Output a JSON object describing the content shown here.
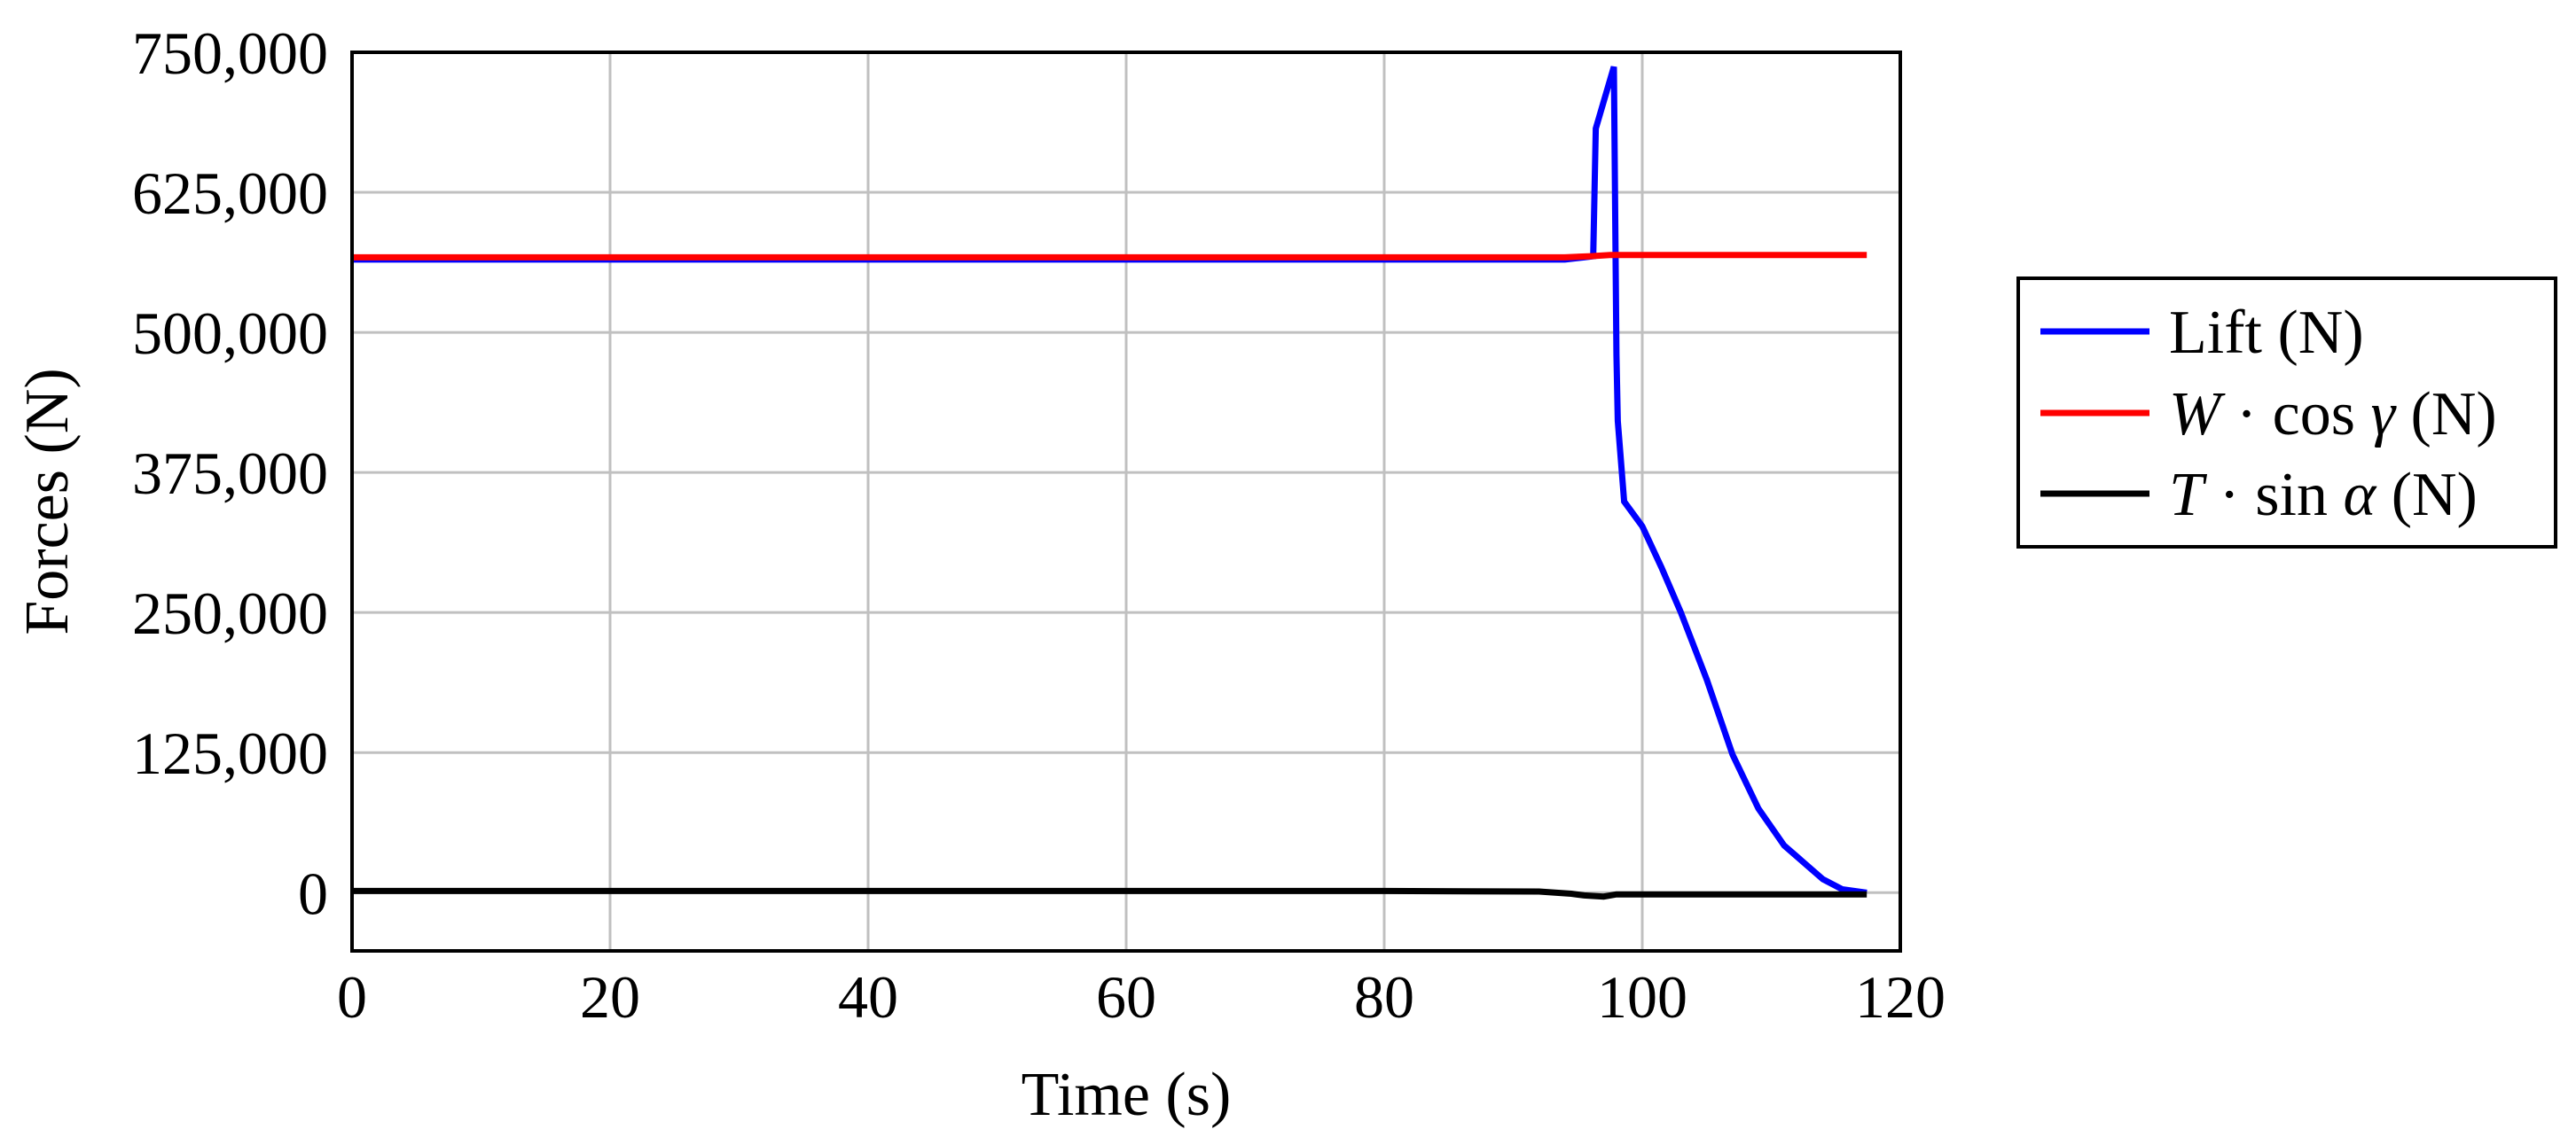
{
  "chart_data": {
    "type": "line",
    "title": "",
    "xlabel": "Time (s)",
    "ylabel": "Forces (N)",
    "xlim": [
      0,
      120
    ],
    "ylim": [
      -52000,
      750000
    ],
    "grid": true,
    "legend_position": "outside-right",
    "x_ticks": [
      0,
      20,
      40,
      60,
      80,
      100,
      120
    ],
    "x_tick_labels": [
      "0",
      "20",
      "40",
      "60",
      "80",
      "100",
      "120"
    ],
    "y_ticks": [
      0,
      125000,
      250000,
      375000,
      500000,
      625000,
      750000
    ],
    "y_tick_labels": [
      "0",
      "125,000",
      "250,000",
      "375,000",
      "500,000",
      "625,000",
      "750,000"
    ],
    "series": [
      {
        "name": "Lift (N)",
        "color": "#0000ff",
        "x": [
          0,
          20,
          40,
          60,
          80,
          94,
          95.5,
          96.2,
          96.4,
          97.8,
          98.0,
          98.1,
          98.6,
          100,
          101.5,
          103,
          105,
          107,
          109,
          111,
          112.5,
          114,
          115.5,
          117.4
        ],
        "y": [
          565000,
          565000,
          565000,
          565000,
          565000,
          565000,
          567000,
          568000,
          682000,
          737000,
          480000,
          421000,
          349000,
          327000,
          290000,
          250000,
          190000,
          123000,
          75000,
          42000,
          27000,
          12000,
          3000,
          0
        ]
      },
      {
        "name": "W · cos γ (N)",
        "color": "#ff0000",
        "x": [
          0,
          20,
          40,
          60,
          80,
          94,
          96,
          97.5,
          100,
          110,
          117.4
        ],
        "y": [
          567000,
          567000,
          567000,
          567000,
          567000,
          567000,
          568000,
          569000,
          569000,
          569000,
          569000
        ]
      },
      {
        "name": "T · sin α (N)",
        "color": "#000000",
        "x": [
          0,
          20,
          40,
          60,
          80,
          92,
          94.5,
          95.5,
          97,
          98,
          100,
          110,
          117.4
        ],
        "y": [
          1500,
          1500,
          1500,
          1500,
          1500,
          1000,
          -1000,
          -2500,
          -3500,
          -1500,
          -1500,
          -1500,
          -1500
        ]
      }
    ]
  },
  "legend": {
    "items": [
      {
        "parts": [
          {
            "t": "Lift (N)",
            "i": false
          }
        ]
      },
      {
        "parts": [
          {
            "t": "W",
            "i": true
          },
          {
            "t": " · cos ",
            "i": false
          },
          {
            "t": "γ",
            "i": true
          },
          {
            "t": " (N)",
            "i": false
          }
        ]
      },
      {
        "parts": [
          {
            "t": "T",
            "i": true
          },
          {
            "t": " · sin ",
            "i": false
          },
          {
            "t": "α",
            "i": true
          },
          {
            "t": " (N)",
            "i": false
          }
        ]
      }
    ]
  },
  "colors": {
    "grid": "#c0c0c0",
    "frame": "#000000"
  }
}
